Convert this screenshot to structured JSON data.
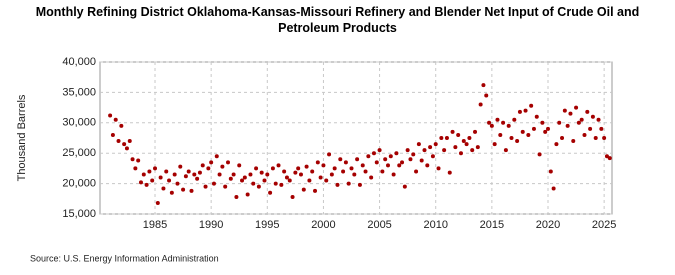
{
  "chart_data": {
    "type": "scatter",
    "title": "Monthly Refining District Oklahoma-Kansas-Missouri Refinery and Blender Net Input of Crude Oil and Petroleum Products",
    "y_label": "Thousand Barrels",
    "source": "Source: U.S. Energy Information Administration",
    "color": "#a50000",
    "grid": true,
    "xlim": [
      1980.1,
      2025.7
    ],
    "ylim": [
      15000,
      40000
    ],
    "xticks": [
      1985,
      1990,
      1995,
      2000,
      2005,
      2010,
      2015,
      2020,
      2025
    ],
    "yticks": [
      {
        "value": 15000,
        "label": "15,000"
      },
      {
        "value": 20000,
        "label": "20,000"
      },
      {
        "value": 25000,
        "label": "25,000"
      },
      {
        "value": 30000,
        "label": "30,000"
      },
      {
        "value": 35000,
        "label": "35,000"
      },
      {
        "value": 40000,
        "label": "40,000"
      }
    ],
    "x": [
      1981,
      1981.25,
      1981.5,
      1981.75,
      1982,
      1982.25,
      1982.5,
      1982.75,
      1983,
      1983.25,
      1983.5,
      1983.75,
      1984,
      1984.25,
      1984.5,
      1984.75,
      1985,
      1985.25,
      1985.5,
      1985.75,
      1986,
      1986.25,
      1986.5,
      1986.75,
      1987,
      1987.25,
      1987.5,
      1987.75,
      1988,
      1988.25,
      1988.5,
      1988.75,
      1989,
      1989.25,
      1989.5,
      1989.75,
      1990,
      1990.25,
      1990.5,
      1990.75,
      1991,
      1991.25,
      1991.5,
      1991.75,
      1992,
      1992.25,
      1992.5,
      1992.75,
      1993,
      1993.25,
      1993.5,
      1993.75,
      1994,
      1994.25,
      1994.5,
      1994.75,
      1995,
      1995.25,
      1995.5,
      1995.75,
      1996,
      1996.25,
      1996.5,
      1996.75,
      1997,
      1997.25,
      1997.5,
      1997.75,
      1998,
      1998.25,
      1998.5,
      1998.75,
      1999,
      1999.25,
      1999.5,
      1999.75,
      2000,
      2000.25,
      2000.5,
      2000.75,
      2001,
      2001.25,
      2001.5,
      2001.75,
      2002,
      2002.25,
      2002.5,
      2002.75,
      2003,
      2003.25,
      2003.5,
      2003.75,
      2004,
      2004.25,
      2004.5,
      2004.75,
      2005,
      2005.25,
      2005.5,
      2005.75,
      2006,
      2006.25,
      2006.5,
      2006.75,
      2007,
      2007.25,
      2007.5,
      2007.75,
      2008,
      2008.25,
      2008.5,
      2008.75,
      2009,
      2009.25,
      2009.5,
      2009.75,
      2010,
      2010.25,
      2010.5,
      2010.75,
      2011,
      2011.25,
      2011.5,
      2011.75,
      2012,
      2012.25,
      2012.5,
      2012.75,
      2013,
      2013.25,
      2013.5,
      2013.75,
      2014,
      2014.25,
      2014.5,
      2014.75,
      2015,
      2015.25,
      2015.5,
      2015.75,
      2016,
      2016.25,
      2016.5,
      2016.75,
      2017,
      2017.25,
      2017.5,
      2017.75,
      2018,
      2018.25,
      2018.5,
      2018.75,
      2019,
      2019.25,
      2019.5,
      2019.75,
      2020,
      2020.25,
      2020.5,
      2020.75,
      2021,
      2021.25,
      2021.5,
      2021.75,
      2022,
      2022.25,
      2022.5,
      2022.75,
      2023,
      2023.25,
      2023.5,
      2023.75,
      2024,
      2024.25,
      2024.5,
      2024.75,
      2025,
      2025.25,
      2025.5
    ],
    "values": [
      31200,
      28000,
      30500,
      27000,
      29500,
      26500,
      25800,
      27000,
      24000,
      22500,
      23800,
      20200,
      21500,
      19800,
      22000,
      20500,
      22500,
      16800,
      21000,
      19200,
      22000,
      20500,
      18500,
      21500,
      20000,
      22800,
      19000,
      21200,
      22000,
      18800,
      21500,
      20800,
      21800,
      23000,
      19500,
      22500,
      23500,
      20000,
      24500,
      21500,
      22800,
      19500,
      23500,
      20800,
      21500,
      17800,
      23000,
      20500,
      21000,
      18200,
      21500,
      20000,
      22500,
      19500,
      21800,
      20500,
      21500,
      18500,
      22500,
      20000,
      23000,
      19800,
      22000,
      21000,
      20500,
      17800,
      21800,
      22500,
      21500,
      19000,
      22800,
      20500,
      22000,
      18800,
      23500,
      21000,
      23000,
      20500,
      24800,
      21500,
      22500,
      19800,
      24000,
      22000,
      23500,
      20000,
      22500,
      21500,
      24000,
      19800,
      23000,
      22000,
      24500,
      21000,
      25000,
      23500,
      25500,
      22000,
      24000,
      23000,
      24500,
      21500,
      25000,
      23000,
      23500,
      19500,
      25500,
      24000,
      24800,
      22000,
      26500,
      23800,
      25500,
      23000,
      26000,
      24500,
      26500,
      22500,
      27500,
      25500,
      27500,
      21800,
      28500,
      26000,
      28000,
      25000,
      27000,
      26500,
      27500,
      25500,
      28500,
      26000,
      33000,
      36200,
      34500,
      30000,
      29500,
      26500,
      30500,
      28000,
      30000,
      25500,
      29500,
      27500,
      30500,
      27000,
      31800,
      28500,
      32000,
      28000,
      32800,
      29000,
      31000,
      24800,
      30000,
      28500,
      29000,
      22000,
      19200,
      26500,
      30000,
      27500,
      32000,
      29500,
      31500,
      27000,
      32500,
      30000,
      30500,
      28000,
      31800,
      29000,
      31000,
      27500,
      30500,
      29000,
      27500,
      24500,
      24200
    ]
  }
}
